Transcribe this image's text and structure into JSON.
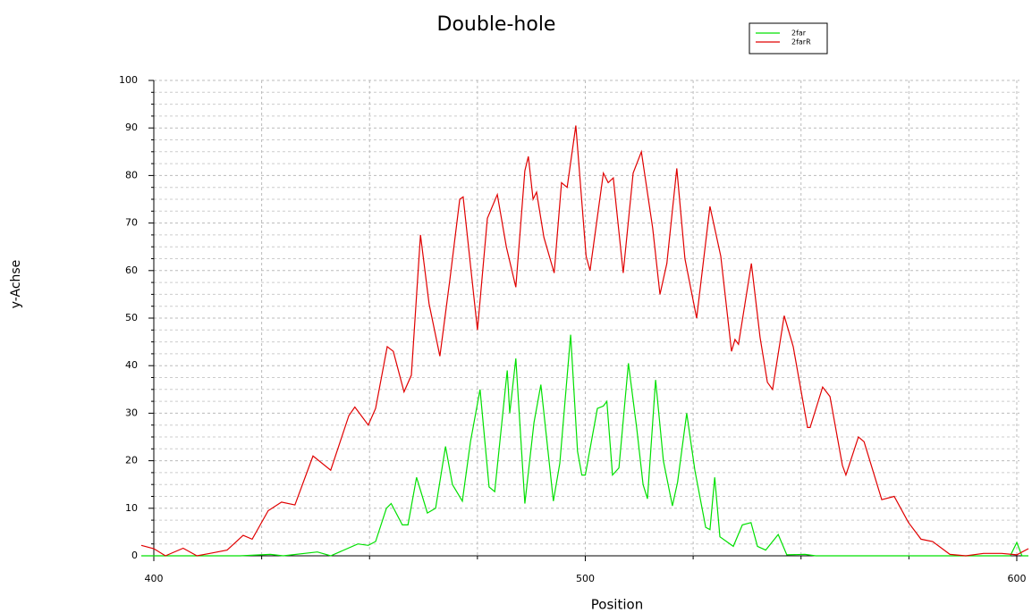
{
  "chart_data": {
    "type": "line",
    "title": "Double-hole",
    "x_label": "Position",
    "y_label": "y-Achse",
    "xlim": [
      397.1,
      602.7
    ],
    "ylim": [
      0,
      100
    ],
    "xticks": [
      400,
      500,
      600
    ],
    "x_minor_ticks": [
      425,
      450,
      475,
      525,
      550,
      575
    ],
    "yticks": [
      0,
      10,
      20,
      30,
      40,
      50,
      60,
      70,
      80,
      90,
      100
    ],
    "y_minor_divisions": 4,
    "grid": true,
    "legend": "top-right",
    "series": [
      {
        "name": "2far",
        "color": "#00e000",
        "x": [
          397.1,
          420,
          427,
          430,
          437.9,
          441,
          447.3,
          449.7,
          451.4,
          453.9,
          455,
          457.6,
          458.9,
          460.9,
          463.4,
          465.3,
          467.6,
          469.2,
          471.5,
          473.4,
          475.6,
          477.7,
          479,
          481.9,
          482.5,
          483.9,
          486,
          488.1,
          489.7,
          492.6,
          494.1,
          496.6,
          498.2,
          499.2,
          500,
          502.8,
          504.2,
          505,
          506.3,
          507.8,
          510,
          511.9,
          513.4,
          514.4,
          516.3,
          518.1,
          520.2,
          521.4,
          523.5,
          525.4,
          527.9,
          528.9,
          530,
          531.2,
          534.3,
          536.4,
          538.4,
          539.9,
          541.8,
          544.7,
          546.7,
          550.9,
          553.4,
          598.5,
          600,
          601.2,
          602.7
        ],
        "values": [
          0,
          0,
          0.3,
          0,
          0.8,
          0,
          2.5,
          2.2,
          3,
          10,
          11,
          6.5,
          6.5,
          16.5,
          9,
          10,
          23,
          15,
          11.5,
          24,
          35,
          14.5,
          13.5,
          39,
          30,
          41.5,
          11,
          28,
          36,
          11.5,
          19.5,
          46.5,
          22,
          17,
          17,
          31,
          31.5,
          32.5,
          17,
          18.5,
          40.5,
          27,
          15,
          12,
          37,
          20,
          10.5,
          15.5,
          30,
          18,
          6,
          5.5,
          16.5,
          4,
          2,
          6.5,
          7,
          2,
          1.2,
          4.5,
          0.2,
          0.3,
          0,
          0,
          2.8,
          0,
          0
        ]
      },
      {
        "name": "2farR",
        "color": "#e00000",
        "x": [
          397.1,
          400,
          402.7,
          406.8,
          410,
          413,
          417,
          420.7,
          422.8,
          426.5,
          429.6,
          432.7,
          436.9,
          441,
          445.2,
          446.6,
          449.7,
          451.4,
          454.1,
          455.5,
          458,
          459.7,
          461.8,
          463.8,
          466.3,
          468.6,
          470.9,
          471.7,
          475,
          477.3,
          479.6,
          481.7,
          483.9,
          486,
          486.8,
          487.9,
          488.7,
          490.4,
          492.8,
          494.5,
          495.8,
          497.8,
          500.2,
          501.1,
          504.2,
          505.3,
          506.5,
          508.8,
          511.1,
          513,
          515.6,
          517.3,
          518.9,
          521.2,
          523.1,
          525.8,
          528.9,
          531.4,
          533.9,
          534.7,
          535.5,
          538.5,
          540.5,
          542.2,
          543.4,
          546.1,
          548.2,
          551.5,
          552.1,
          555,
          556.7,
          559.6,
          560.4,
          563.3,
          564.6,
          568.7,
          571.6,
          574.9,
          577.8,
          580.5,
          584.5,
          588.2,
          592.3,
          596.5,
          600,
          602.7
        ],
        "values": [
          2.2,
          1.5,
          0,
          1.6,
          0,
          0.5,
          1.2,
          4.3,
          3.5,
          9.5,
          11.3,
          10.7,
          21,
          18,
          29.5,
          31.3,
          27.5,
          31,
          44,
          43,
          34.5,
          38,
          67.5,
          53,
          42,
          58,
          75,
          75.5,
          47.5,
          71,
          76,
          65,
          56.5,
          81,
          84,
          75,
          76.5,
          67,
          59.5,
          78.5,
          77.5,
          90.5,
          63,
          60,
          80.5,
          78.5,
          79.5,
          59.5,
          80.5,
          85,
          69,
          55,
          61.5,
          81.5,
          62.5,
          50,
          73.5,
          63,
          43,
          45.5,
          44.5,
          61.5,
          46,
          36.5,
          35,
          50.5,
          44,
          27,
          27,
          35.5,
          33.5,
          19,
          17,
          25,
          24,
          11.8,
          12.5,
          7,
          3.5,
          3,
          0.3,
          0,
          0.5,
          0.5,
          0.2,
          1.5
        ]
      }
    ]
  }
}
